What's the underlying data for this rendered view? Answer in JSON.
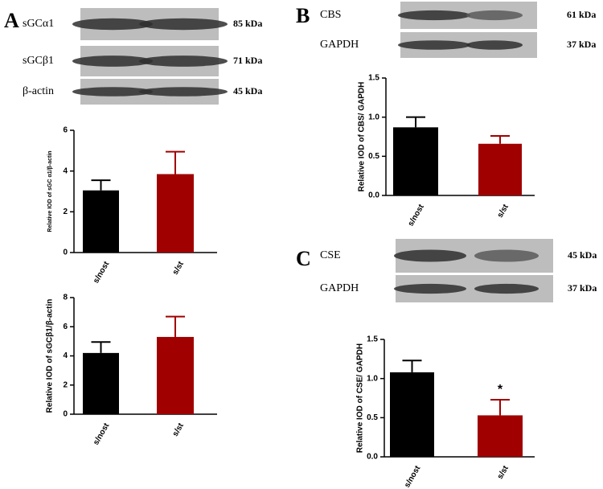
{
  "panels": [
    {
      "letter": "A",
      "blot_rows": [
        {
          "label": "sGCα1",
          "size": "85 kDa"
        },
        {
          "label": "sGCβ1",
          "size": "71 kDa"
        },
        {
          "label": "β-actin",
          "size": "45 kDa"
        }
      ]
    },
    {
      "letter": "B",
      "blot_rows": [
        {
          "label": "CBS",
          "size": "61 kDa"
        },
        {
          "label": "GAPDH",
          "size": "37 kDa"
        }
      ]
    },
    {
      "letter": "C",
      "blot_rows": [
        {
          "label": "CSE",
          "size": "45 kDa"
        },
        {
          "label": "GAPDH",
          "size": "37 kDa"
        }
      ]
    }
  ],
  "chart_data": [
    {
      "type": "bar",
      "y_label": "Relative IOD of sGC α1/β-actin",
      "categories": [
        "s/nost",
        "s/st"
      ],
      "values": [
        3.05,
        3.85
      ],
      "errors": [
        0.5,
        1.1
      ],
      "colors": [
        "#000000",
        "#a00000"
      ],
      "ylim": [
        0,
        6
      ],
      "yticks": [
        0,
        2,
        4,
        6
      ]
    },
    {
      "type": "bar",
      "y_label": "Relative IOD of sGCβ1/β-actin",
      "categories": [
        "s/nost",
        "s/st"
      ],
      "values": [
        4.2,
        5.3
      ],
      "errors": [
        0.75,
        1.4
      ],
      "colors": [
        "#000000",
        "#a00000"
      ],
      "ylim": [
        0,
        8
      ],
      "yticks": [
        0,
        2,
        4,
        6,
        8
      ]
    },
    {
      "type": "bar",
      "y_label": "Relative IOD of CBS/ GAPDH",
      "categories": [
        "s/nost",
        "s/st"
      ],
      "values": [
        0.87,
        0.66
      ],
      "errors": [
        0.13,
        0.1
      ],
      "colors": [
        "#000000",
        "#a00000"
      ],
      "ylim": [
        0,
        1.5
      ],
      "yticks": [
        {
          "value": 0,
          "label": "0.0"
        },
        0.5,
        {
          "value": 1,
          "label": "1.0"
        },
        1.5
      ]
    },
    {
      "type": "bar",
      "y_label": "Relative IOD of CSE/ GAPDH",
      "categories": [
        "s/nost",
        "s/st"
      ],
      "values": [
        1.08,
        0.53
      ],
      "errors": [
        0.15,
        0.2
      ],
      "colors": [
        "#000000",
        "#a00000"
      ],
      "ylim": [
        0,
        1.5
      ],
      "yticks": [
        {
          "value": 0,
          "label": "0.0"
        },
        0.5,
        {
          "value": 1,
          "label": "1.0"
        },
        1.5
      ],
      "annotations": [
        {
          "category": 1,
          "text": "*"
        }
      ]
    }
  ]
}
